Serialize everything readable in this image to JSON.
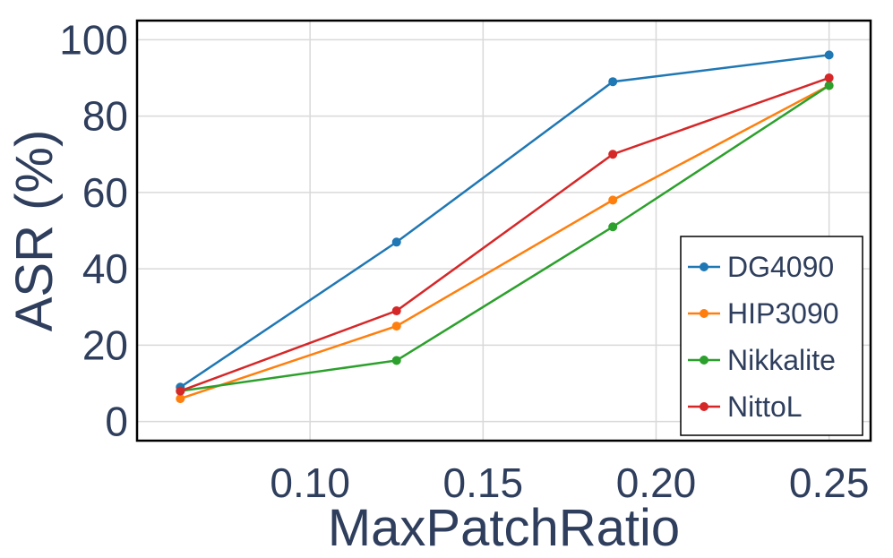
{
  "chart_data": {
    "type": "line",
    "title": "",
    "xlabel": "MaxPatchRatio",
    "ylabel": "ASR (%)",
    "x": [
      0.0625,
      0.125,
      0.1875,
      0.25
    ],
    "xlim": [
      0.05,
      0.262
    ],
    "ylim": [
      -5,
      105
    ],
    "xticks": [
      0.1,
      0.15,
      0.2,
      0.25
    ],
    "xtick_labels": [
      "0.10",
      "0.15",
      "0.20",
      "0.25"
    ],
    "yticks": [
      0,
      20,
      40,
      60,
      80,
      100
    ],
    "ytick_labels": [
      "0",
      "20",
      "40",
      "60",
      "80",
      "100"
    ],
    "grid": true,
    "legend_position": "bottom-right",
    "series": [
      {
        "name": "DG4090",
        "color": "#1f77b4",
        "values": [
          9,
          47,
          89,
          96
        ]
      },
      {
        "name": "HIP3090",
        "color": "#ff7f0e",
        "values": [
          6,
          25,
          58,
          88
        ]
      },
      {
        "name": "Nikkalite",
        "color": "#2ca02c",
        "values": [
          8,
          16,
          51,
          88
        ]
      },
      {
        "name": "NittoL",
        "color": "#d62728",
        "values": [
          8,
          29,
          70,
          90
        ]
      }
    ]
  }
}
